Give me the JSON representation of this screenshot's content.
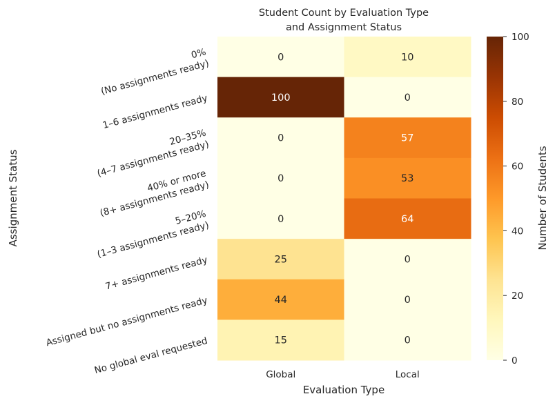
{
  "chart_data": {
    "type": "heatmap",
    "title": "Student Count by Evaluation Type\nand Assignment Status",
    "title_lines": [
      "Student Count by Evaluation Type",
      "and Assignment Status"
    ],
    "xlabel": "Evaluation Type",
    "ylabel": "Assignment Status",
    "columns": [
      "Global",
      "Local"
    ],
    "rows": [
      {
        "label_lines": [
          "0%",
          "(No assignments ready)"
        ],
        "values": [
          0,
          10
        ]
      },
      {
        "label_lines": [
          "1–6 assignments ready"
        ],
        "values": [
          100,
          0
        ]
      },
      {
        "label_lines": [
          "20–35%",
          "(4–7 assignments ready)"
        ],
        "values": [
          0,
          57
        ]
      },
      {
        "label_lines": [
          "40% or more",
          "(8+ assignments ready)"
        ],
        "values": [
          0,
          53
        ]
      },
      {
        "label_lines": [
          "5–20%",
          "(1–3 assignments ready)"
        ],
        "values": [
          0,
          64
        ]
      },
      {
        "label_lines": [
          "7+ assignments ready"
        ],
        "values": [
          25,
          0
        ]
      },
      {
        "label_lines": [
          "Assigned but no assignments ready"
        ],
        "values": [
          44,
          0
        ]
      },
      {
        "label_lines": [
          "No global eval requested"
        ],
        "values": [
          15,
          0
        ]
      }
    ],
    "colorbar": {
      "label": "Number of Students",
      "range": [
        0,
        100
      ],
      "ticks": [
        0,
        20,
        40,
        60,
        80,
        100
      ],
      "colormap": "YlOrBr",
      "stops": [
        "#ffffe5",
        "#fff7bc",
        "#fee391",
        "#fec44f",
        "#fe9929",
        "#ec7014",
        "#cc4c02",
        "#993404",
        "#662506"
      ]
    }
  }
}
